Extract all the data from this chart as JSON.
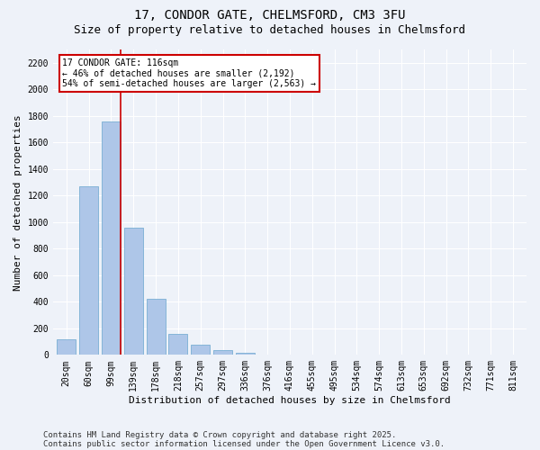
{
  "title1": "17, CONDOR GATE, CHELMSFORD, CM3 3FU",
  "title2": "Size of property relative to detached houses in Chelmsford",
  "xlabel": "Distribution of detached houses by size in Chelmsford",
  "ylabel": "Number of detached properties",
  "categories": [
    "20sqm",
    "60sqm",
    "99sqm",
    "139sqm",
    "178sqm",
    "218sqm",
    "257sqm",
    "297sqm",
    "336sqm",
    "376sqm",
    "416sqm",
    "455sqm",
    "495sqm",
    "534sqm",
    "574sqm",
    "613sqm",
    "653sqm",
    "692sqm",
    "732sqm",
    "771sqm",
    "811sqm"
  ],
  "values": [
    120,
    1270,
    1760,
    960,
    420,
    155,
    75,
    35,
    15,
    0,
    0,
    0,
    0,
    0,
    0,
    0,
    0,
    0,
    0,
    0,
    0
  ],
  "bar_color": "#aec6e8",
  "bar_edge_color": "#7aafd4",
  "vline_color": "#cc0000",
  "annotation_text": "17 CONDOR GATE: 116sqm\n← 46% of detached houses are smaller (2,192)\n54% of semi-detached houses are larger (2,563) →",
  "annotation_box_color": "#cc0000",
  "ylim": [
    0,
    2300
  ],
  "yticks": [
    0,
    200,
    400,
    600,
    800,
    1000,
    1200,
    1400,
    1600,
    1800,
    2000,
    2200
  ],
  "footer1": "Contains HM Land Registry data © Crown copyright and database right 2025.",
  "footer2": "Contains public sector information licensed under the Open Government Licence v3.0.",
  "bg_color": "#eef2f9",
  "plot_bg_color": "#eef2f9",
  "grid_color": "#ffffff",
  "title_fontsize": 10,
  "subtitle_fontsize": 9,
  "axis_label_fontsize": 8,
  "tick_fontsize": 7,
  "annotation_fontsize": 7,
  "footer_fontsize": 6.5
}
